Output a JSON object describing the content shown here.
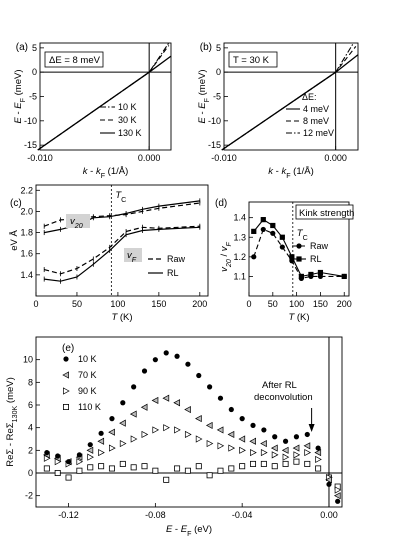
{
  "chart_data": [
    {
      "panel": "(a)",
      "type": "line",
      "annotation": "ΔE = 8 meV",
      "xlabel": "k - k_F (1/Å)",
      "ylabel": "E - E_F (meV)",
      "xlim": [
        -0.01,
        0.002
      ],
      "ylim": [
        -16,
        6
      ],
      "xticks": [
        "-0.010",
        "0.000"
      ],
      "yticks": [
        "-15",
        "-10",
        "-5",
        "0",
        "5"
      ],
      "series": [
        {
          "name": "10 K",
          "style": "dashdot",
          "x": [
            -0.0102,
            0.0,
            0.0018
          ],
          "y": [
            -16,
            0.0,
            6.0
          ]
        },
        {
          "name": "30 K",
          "style": "dashed",
          "x": [
            -0.0102,
            0.0,
            0.0018
          ],
          "y": [
            -16,
            0.0,
            5.5
          ]
        },
        {
          "name": "130 K",
          "style": "solid",
          "x": [
            -0.0102,
            0.0,
            0.002
          ],
          "y": [
            -16,
            0.0,
            3.3
          ]
        }
      ]
    },
    {
      "panel": "(b)",
      "type": "line",
      "annotation": "T = 30 K",
      "legend_title": "ΔE:",
      "xlabel": "k - k_F (1/Å)",
      "ylabel": "E - E_F (meV)",
      "xlim": [
        -0.01,
        0.002
      ],
      "ylim": [
        -16,
        6
      ],
      "xticks": [
        "-0.010",
        "0.000"
      ],
      "yticks": [
        "-15",
        "-10",
        "-5",
        "0",
        "5"
      ],
      "series": [
        {
          "name": "4 meV",
          "style": "solid",
          "x": [
            -0.0102,
            0.0,
            0.002
          ],
          "y": [
            -16,
            0.0,
            3.6
          ]
        },
        {
          "name": "8 meV",
          "style": "dashed",
          "x": [
            -0.0102,
            0.0,
            0.0018
          ],
          "y": [
            -16,
            0.0,
            5.3
          ]
        },
        {
          "name": "12 meV",
          "style": "dashdot",
          "x": [
            -0.0102,
            0.0,
            0.0016
          ],
          "y": [
            -16,
            0.0,
            6.0
          ]
        }
      ]
    },
    {
      "panel": "(c)",
      "type": "line",
      "xlabel": "T (K)",
      "ylabel": "eV Å",
      "xlim": [
        0,
        210
      ],
      "ylim": [
        1.2,
        2.25
      ],
      "xticks": [
        0,
        50,
        100,
        150,
        200
      ],
      "yticks": [
        "1.4",
        "1.6",
        "1.8",
        "2.0",
        "2.2"
      ],
      "vline_x": 92,
      "tc_label": "T_C",
      "label_v20": "v_20",
      "label_vf": "v_F",
      "series": [
        {
          "name": "Raw",
          "group": "v20",
          "style": "dashed",
          "x": [
            10,
            30,
            50,
            70,
            90,
            110,
            130,
            150,
            200
          ],
          "y": [
            1.86,
            1.92,
            1.93,
            1.95,
            1.96,
            1.97,
            2.0,
            2.03,
            2.08
          ]
        },
        {
          "name": "RL",
          "group": "v20",
          "style": "solid",
          "x": [
            10,
            30,
            50,
            70,
            90,
            110,
            130,
            150,
            200
          ],
          "y": [
            1.8,
            1.83,
            1.87,
            1.94,
            1.95,
            1.98,
            2.02,
            2.05,
            2.1
          ]
        },
        {
          "name": "Raw",
          "group": "vF",
          "style": "dashed",
          "x": [
            10,
            30,
            50,
            70,
            90,
            110,
            130,
            150,
            200
          ],
          "y": [
            1.45,
            1.41,
            1.46,
            1.55,
            1.66,
            1.81,
            1.85,
            1.84,
            1.86
          ]
        },
        {
          "name": "RL",
          "group": "vF",
          "style": "solid",
          "x": [
            10,
            30,
            50,
            70,
            90,
            110,
            130,
            150,
            200
          ],
          "y": [
            1.36,
            1.34,
            1.38,
            1.5,
            1.63,
            1.78,
            1.82,
            1.83,
            1.85
          ]
        }
      ],
      "legend": [
        "Raw",
        "RL"
      ]
    },
    {
      "panel": "(d)",
      "type": "line",
      "title": "Kink strength",
      "xlabel": "T (K)",
      "ylabel": "v_20 / v_F",
      "xlim": [
        0,
        210
      ],
      "ylim": [
        1.0,
        1.48
      ],
      "xticks": [
        0,
        50,
        100,
        150,
        200
      ],
      "yticks": [
        "1.1",
        "1.2",
        "1.3",
        "1.4"
      ],
      "vline_x": 92,
      "tc_label": "T_C",
      "series": [
        {
          "name": "Raw",
          "marker": "circle",
          "style": "dashed",
          "x": [
            10,
            30,
            50,
            70,
            90,
            110,
            130,
            150,
            200
          ],
          "y": [
            1.2,
            1.34,
            1.32,
            1.25,
            1.18,
            1.09,
            1.1,
            1.1,
            1.1
          ]
        },
        {
          "name": "RL",
          "marker": "square",
          "style": "solid",
          "x": [
            10,
            30,
            50,
            70,
            90,
            110,
            130,
            150,
            200
          ],
          "y": [
            1.33,
            1.39,
            1.36,
            1.3,
            1.2,
            1.1,
            1.11,
            1.12,
            1.1
          ]
        }
      ]
    },
    {
      "panel": "(e)",
      "type": "scatter",
      "xlabel": "E - E_F (eV)",
      "ylabel": "ReΣ - ReΣ_130K (meV)",
      "xlim": [
        -0.135,
        0.006
      ],
      "ylim": [
        -3,
        12
      ],
      "xticks": [
        "-0.12",
        "-0.08",
        "-0.04",
        "0.00"
      ],
      "yticks": [
        "-2",
        "0",
        "2",
        "4",
        "6",
        "8",
        "10"
      ],
      "annotation": "After RL deconvolution",
      "arrow_x": -0.008,
      "series": [
        {
          "name": "10 K",
          "marker": "filled-circle",
          "x": [
            -0.13,
            -0.125,
            -0.12,
            -0.115,
            -0.11,
            -0.105,
            -0.1,
            -0.095,
            -0.09,
            -0.085,
            -0.08,
            -0.075,
            -0.07,
            -0.065,
            -0.06,
            -0.055,
            -0.05,
            -0.045,
            -0.04,
            -0.035,
            -0.03,
            -0.025,
            -0.02,
            -0.015,
            -0.01,
            -0.005,
            0.0,
            0.004
          ],
          "y": [
            1.8,
            1.5,
            1.0,
            1.6,
            2.5,
            3.5,
            4.8,
            6.2,
            7.6,
            9.0,
            10.0,
            10.6,
            10.3,
            9.6,
            8.6,
            7.6,
            6.6,
            5.6,
            4.8,
            4.2,
            3.8,
            3.2,
            2.8,
            3.2,
            3.4,
            2.2,
            -1.0,
            -2.5
          ]
        },
        {
          "name": "70 K",
          "marker": "triangle-left",
          "x": [
            -0.13,
            -0.125,
            -0.12,
            -0.115,
            -0.11,
            -0.105,
            -0.1,
            -0.095,
            -0.09,
            -0.085,
            -0.08,
            -0.075,
            -0.07,
            -0.065,
            -0.06,
            -0.055,
            -0.05,
            -0.045,
            -0.04,
            -0.035,
            -0.03,
            -0.025,
            -0.02,
            -0.015,
            -0.01,
            -0.005,
            0.0,
            0.004
          ],
          "y": [
            1.6,
            1.3,
            1.0,
            1.4,
            2.0,
            2.8,
            3.6,
            4.4,
            5.2,
            5.8,
            6.4,
            6.6,
            6.2,
            5.6,
            4.8,
            4.2,
            3.8,
            3.4,
            3.0,
            2.8,
            2.6,
            2.2,
            2.0,
            2.2,
            2.4,
            1.8,
            -0.6,
            -2.0
          ]
        },
        {
          "name": "90 K",
          "marker": "triangle-right",
          "x": [
            -0.13,
            -0.125,
            -0.12,
            -0.115,
            -0.11,
            -0.105,
            -0.1,
            -0.095,
            -0.09,
            -0.085,
            -0.08,
            -0.075,
            -0.07,
            -0.065,
            -0.06,
            -0.055,
            -0.05,
            -0.045,
            -0.04,
            -0.035,
            -0.03,
            -0.025,
            -0.02,
            -0.015,
            -0.01,
            -0.005,
            0.0,
            0.004
          ],
          "y": [
            1.3,
            1.0,
            0.8,
            1.0,
            1.4,
            1.8,
            2.2,
            2.6,
            3.0,
            3.4,
            3.8,
            4.0,
            3.8,
            3.4,
            3.0,
            2.6,
            2.4,
            2.2,
            2.0,
            1.8,
            1.8,
            1.6,
            1.4,
            1.6,
            1.8,
            1.2,
            -0.4,
            -1.5
          ]
        },
        {
          "name": "110 K",
          "marker": "open-square",
          "x": [
            -0.13,
            -0.125,
            -0.12,
            -0.115,
            -0.11,
            -0.105,
            -0.1,
            -0.095,
            -0.09,
            -0.085,
            -0.08,
            -0.075,
            -0.07,
            -0.065,
            -0.06,
            -0.055,
            -0.05,
            -0.045,
            -0.04,
            -0.035,
            -0.03,
            -0.025,
            -0.02,
            -0.015,
            -0.01,
            -0.005,
            0.0,
            0.004
          ],
          "y": [
            0.4,
            0.0,
            -0.4,
            0.2,
            0.5,
            0.6,
            0.4,
            0.8,
            0.5,
            0.6,
            0.2,
            -0.6,
            0.4,
            0.2,
            0.6,
            -0.2,
            0.2,
            0.4,
            0.6,
            0.8,
            0.8,
            0.6,
            0.8,
            1.0,
            0.8,
            0.4,
            -0.4,
            -1.2
          ]
        }
      ]
    }
  ]
}
